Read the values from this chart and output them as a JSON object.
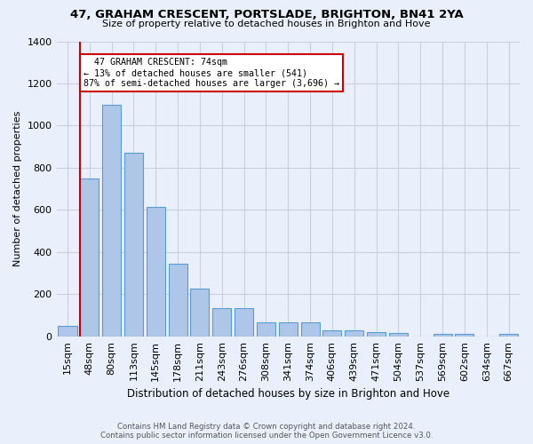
{
  "title": "47, GRAHAM CRESCENT, PORTSLADE, BRIGHTON, BN41 2YA",
  "subtitle": "Size of property relative to detached houses in Brighton and Hove",
  "xlabel": "Distribution of detached houses by size in Brighton and Hove",
  "ylabel": "Number of detached properties",
  "footnote1": "Contains HM Land Registry data © Crown copyright and database right 2024.",
  "footnote2": "Contains public sector information licensed under the Open Government Licence v3.0.",
  "bar_labels": [
    "15sqm",
    "48sqm",
    "80sqm",
    "113sqm",
    "145sqm",
    "178sqm",
    "211sqm",
    "243sqm",
    "276sqm",
    "308sqm",
    "341sqm",
    "374sqm",
    "406sqm",
    "439sqm",
    "471sqm",
    "504sqm",
    "537sqm",
    "569sqm",
    "602sqm",
    "634sqm",
    "667sqm"
  ],
  "bar_values": [
    48,
    750,
    1100,
    870,
    615,
    345,
    228,
    135,
    135,
    65,
    68,
    68,
    28,
    28,
    20,
    15,
    0,
    10,
    10,
    0,
    10
  ],
  "bar_color": "#aec6e8",
  "bar_edge_color": "#5b9bd5",
  "bg_color": "#eaf0fb",
  "grid_color": "#c8d0e0",
  "property_label": "47 GRAHAM CRESCENT: 74sqm",
  "pct_smaller": 13,
  "pct_smaller_n": 541,
  "pct_larger": 87,
  "pct_larger_n": 3696,
  "red_line_bar_index": 1,
  "annotation_box_color": "#ffffff",
  "annotation_border_color": "#cc0000",
  "ylim": [
    0,
    1400
  ],
  "yticks": [
    0,
    200,
    400,
    600,
    800,
    1000,
    1200,
    1400
  ]
}
